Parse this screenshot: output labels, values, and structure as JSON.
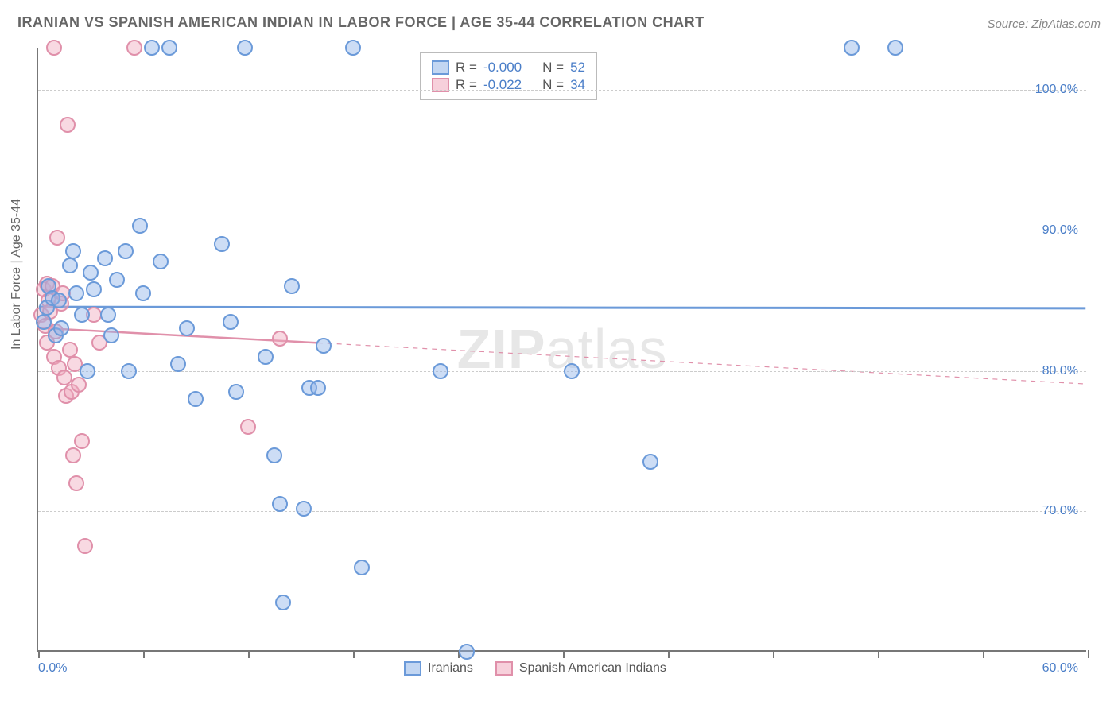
{
  "title": "IRANIAN VS SPANISH AMERICAN INDIAN IN LABOR FORCE | AGE 35-44 CORRELATION CHART",
  "source": "Source: ZipAtlas.com",
  "ylabel": "In Labor Force | Age 35-44",
  "watermark_a": "ZIP",
  "watermark_b": "atlas",
  "chart": {
    "type": "scatter",
    "xlim": [
      0,
      60
    ],
    "ylim": [
      60,
      103
    ],
    "y_gridlines": [
      70,
      80,
      90,
      100
    ],
    "ytick_labels": [
      "70.0%",
      "80.0%",
      "90.0%",
      "100.0%"
    ],
    "xtick_positions": [
      0,
      6,
      12,
      18,
      24,
      30,
      36,
      42,
      48,
      54,
      60
    ],
    "x_zero_label": "0.0%",
    "x_max_label": "60.0%",
    "grid_color": "#cccccc",
    "axis_color": "#777777",
    "background_color": "#ffffff",
    "marker_size": 20
  },
  "series": {
    "blue": {
      "label": "Iranians",
      "color_fill": "rgba(144,180,232,0.45)",
      "color_stroke": "#6b9ad9",
      "R": "-0.000",
      "N": "52",
      "trend": {
        "y_start": 84.5,
        "y_end": 84.4,
        "x_solid_end": 60,
        "solid_width": 3
      },
      "points": [
        [
          0.3,
          83.5
        ],
        [
          0.5,
          84.5
        ],
        [
          0.6,
          86.0
        ],
        [
          0.8,
          85.2
        ],
        [
          1.0,
          82.5
        ],
        [
          1.2,
          85.0
        ],
        [
          1.3,
          83.0
        ],
        [
          1.8,
          87.5
        ],
        [
          2.0,
          88.5
        ],
        [
          2.2,
          85.5
        ],
        [
          2.5,
          84.0
        ],
        [
          2.8,
          80.0
        ],
        [
          3.0,
          87.0
        ],
        [
          3.2,
          85.8
        ],
        [
          3.8,
          88.0
        ],
        [
          4.0,
          84.0
        ],
        [
          4.2,
          82.5
        ],
        [
          4.5,
          86.5
        ],
        [
          5.0,
          88.5
        ],
        [
          5.2,
          80.0
        ],
        [
          5.8,
          90.3
        ],
        [
          6.0,
          85.5
        ],
        [
          6.5,
          103.0
        ],
        [
          7.0,
          87.8
        ],
        [
          7.5,
          103.0
        ],
        [
          8.0,
          80.5
        ],
        [
          8.5,
          83.0
        ],
        [
          9.0,
          78.0
        ],
        [
          10.5,
          89.0
        ],
        [
          11.0,
          83.5
        ],
        [
          11.3,
          78.5
        ],
        [
          11.8,
          103.0
        ],
        [
          13.0,
          81.0
        ],
        [
          13.5,
          74.0
        ],
        [
          13.8,
          70.5
        ],
        [
          14.0,
          63.5
        ],
        [
          14.5,
          86.0
        ],
        [
          15.2,
          70.2
        ],
        [
          15.5,
          78.8
        ],
        [
          16.0,
          78.8
        ],
        [
          16.3,
          81.8
        ],
        [
          18.0,
          103.0
        ],
        [
          18.5,
          66.0
        ],
        [
          23.0,
          80.0
        ],
        [
          24.5,
          60.0
        ],
        [
          30.5,
          80.0
        ],
        [
          35.0,
          73.5
        ],
        [
          46.5,
          103.0
        ],
        [
          49.0,
          103.0
        ]
      ]
    },
    "pink": {
      "label": "Spanish American Indians",
      "color_fill": "rgba(240,170,190,0.45)",
      "color_stroke": "#e090aa",
      "R": "-0.022",
      "N": "34",
      "trend": {
        "y_start": 83.0,
        "y_end": 79.0,
        "x_solid_end": 16,
        "solid_width": 2.5
      },
      "points": [
        [
          0.2,
          84.0
        ],
        [
          0.3,
          85.8
        ],
        [
          0.4,
          83.2
        ],
        [
          0.5,
          86.2
        ],
        [
          0.5,
          82.0
        ],
        [
          0.6,
          85.0
        ],
        [
          0.7,
          84.2
        ],
        [
          0.8,
          86.0
        ],
        [
          0.9,
          81.0
        ],
        [
          1.0,
          82.8
        ],
        [
          1.1,
          89.5
        ],
        [
          1.2,
          80.2
        ],
        [
          1.3,
          84.8
        ],
        [
          1.4,
          85.5
        ],
        [
          1.5,
          79.5
        ],
        [
          1.6,
          78.2
        ],
        [
          1.8,
          81.5
        ],
        [
          1.9,
          78.5
        ],
        [
          2.0,
          74.0
        ],
        [
          2.1,
          80.5
        ],
        [
          2.2,
          72.0
        ],
        [
          2.3,
          79.0
        ],
        [
          2.5,
          75.0
        ],
        [
          2.7,
          67.5
        ],
        [
          3.2,
          84.0
        ],
        [
          3.5,
          82.0
        ],
        [
          1.7,
          97.5
        ],
        [
          0.9,
          103.0
        ],
        [
          5.5,
          103.0
        ],
        [
          12.0,
          76.0
        ],
        [
          13.8,
          82.3
        ]
      ]
    }
  },
  "legend_stats": {
    "rows": [
      {
        "swatch": "blue",
        "r_label": "R =",
        "r_val": "-0.000",
        "n_label": "N =",
        "n_val": "52"
      },
      {
        "swatch": "pink",
        "r_label": "R =",
        "r_val": "-0.022",
        "n_label": "N =",
        "n_val": "34"
      }
    ]
  }
}
